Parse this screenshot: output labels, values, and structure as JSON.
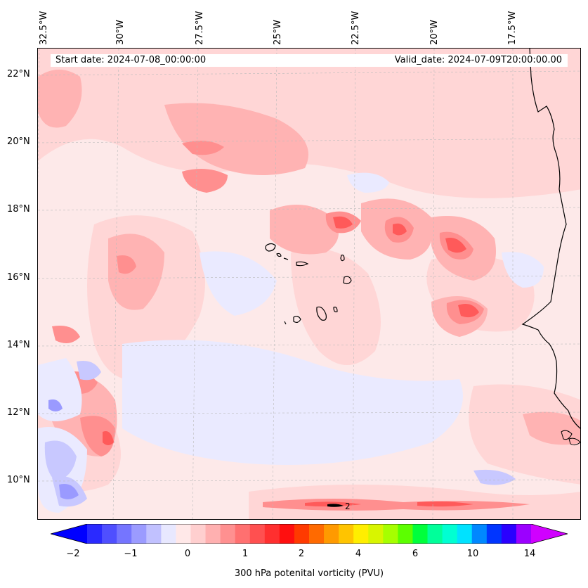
{
  "map": {
    "start_date": "Start date: 2024-07-08_00:00:00",
    "valid_date": "Valid_date: 2024-07-09T20:00:00.00",
    "contour_label": "2",
    "longitude_labels": [
      "32.5°W",
      "30°W",
      "27.5°W",
      "25°W",
      "22.5°W",
      "20°W",
      "17.5°W"
    ],
    "latitude_labels": [
      "22°N",
      "20°N",
      "18°N",
      "16°N",
      "14°N",
      "12°N",
      "10°N"
    ],
    "colors": {
      "background": "#fde9e9",
      "pale_pink": "#ffd6d6",
      "light_pink": "#ffb3b3",
      "pink": "#ff8f8f",
      "red": "#ff5a5a",
      "pale_blue": "#eaeaff",
      "light_blue": "#c8c8ff",
      "blue": "#9a9aff",
      "coast": "#000000"
    }
  },
  "colorbar": {
    "label": "300 hPa potenital vorticity (PVU)",
    "tick_labels": [
      "−2",
      "−1",
      "0",
      "1",
      "2",
      "4",
      "6",
      "10",
      "14"
    ],
    "colors": [
      "#0000ff",
      "#2a2aff",
      "#4f4fff",
      "#7575ff",
      "#9b9bff",
      "#c1c1ff",
      "#e8e8ff",
      "#ffe8e8",
      "#ffcfcf",
      "#ffb0b0",
      "#ff9090",
      "#ff7070",
      "#ff5050",
      "#ff2f2f",
      "#ff0f0f",
      "#ff3a00",
      "#ff6a00",
      "#ff9a00",
      "#ffc400",
      "#ffee00",
      "#d8f500",
      "#a6ff00",
      "#5cff00",
      "#00ff3c",
      "#00ff9a",
      "#00ffd2",
      "#00e2ff",
      "#0088ff",
      "#0035ff",
      "#2a00ff",
      "#9b00ff",
      "#d000ff"
    ]
  }
}
